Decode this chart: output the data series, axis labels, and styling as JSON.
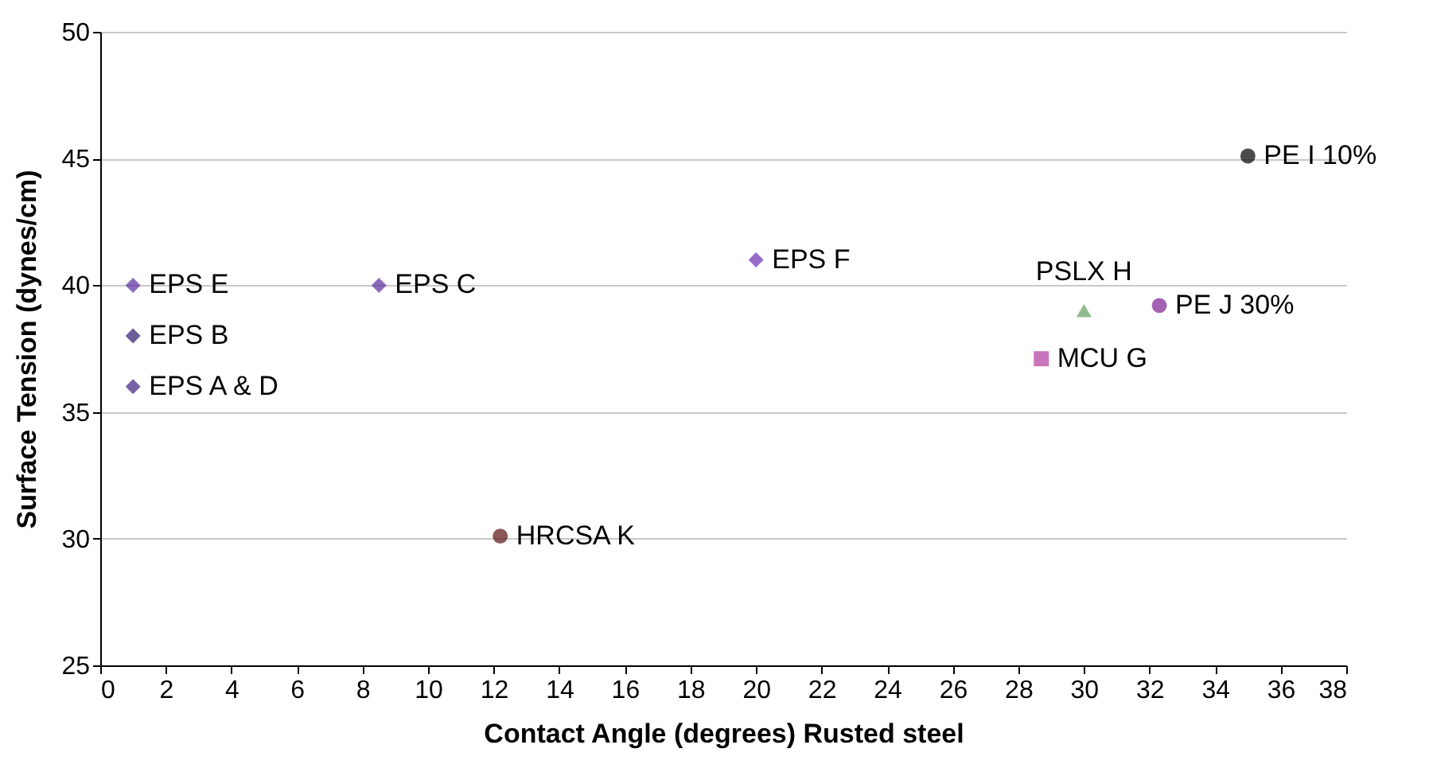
{
  "chart_data": {
    "type": "scatter",
    "xlabel": "Contact Angle (degrees) Rusted steel",
    "ylabel": "Surface Tension (dynes/cm)",
    "xlim": [
      0,
      38
    ],
    "xticks": [
      0,
      2,
      4,
      6,
      8,
      10,
      12,
      14,
      16,
      18,
      20,
      22,
      24,
      26,
      28,
      30,
      32,
      34,
      36,
      38
    ],
    "ylim": [
      25,
      50
    ],
    "yticks": [
      25,
      30,
      35,
      40,
      45,
      50
    ],
    "grid": "y",
    "legend": false,
    "series": [
      {
        "name": "EPS E",
        "color": "#5b2ca0",
        "marker": "diamond",
        "x": [
          1
        ],
        "values": [
          40
        ]
      },
      {
        "name": "EPS B",
        "color": "#2e1a6e",
        "marker": "diamond",
        "x": [
          1
        ],
        "values": [
          38
        ]
      },
      {
        "name": "EPS A & D",
        "color": "#3c2080",
        "marker": "diamond",
        "x": [
          1
        ],
        "values": [
          36
        ]
      },
      {
        "name": "EPS C",
        "color": "#5b2ca0",
        "marker": "diamond",
        "x": [
          8.5
        ],
        "values": [
          40
        ]
      },
      {
        "name": "EPS F",
        "color": "#6a30b0",
        "marker": "diamond",
        "x": [
          20
        ],
        "values": [
          41
        ]
      },
      {
        "name": "PSLX H",
        "color": "#5f9f5f",
        "marker": "triangle",
        "x": [
          30
        ],
        "values": [
          39
        ]
      },
      {
        "name": "PE J 30%",
        "color": "#7a1f90",
        "marker": "circle",
        "x": [
          32.3
        ],
        "values": [
          39.2
        ]
      },
      {
        "name": "MCU G",
        "color": "#b03a9e",
        "marker": "square",
        "x": [
          28.7
        ],
        "values": [
          37.1
        ]
      },
      {
        "name": "PE I 10%",
        "color": "#000000",
        "marker": "circle",
        "x": [
          35
        ],
        "values": [
          45.1
        ]
      },
      {
        "name": "HRCSA K",
        "color": "#5a0f0f",
        "marker": "circle",
        "x": [
          12.2
        ],
        "values": [
          30.1
        ]
      }
    ]
  }
}
